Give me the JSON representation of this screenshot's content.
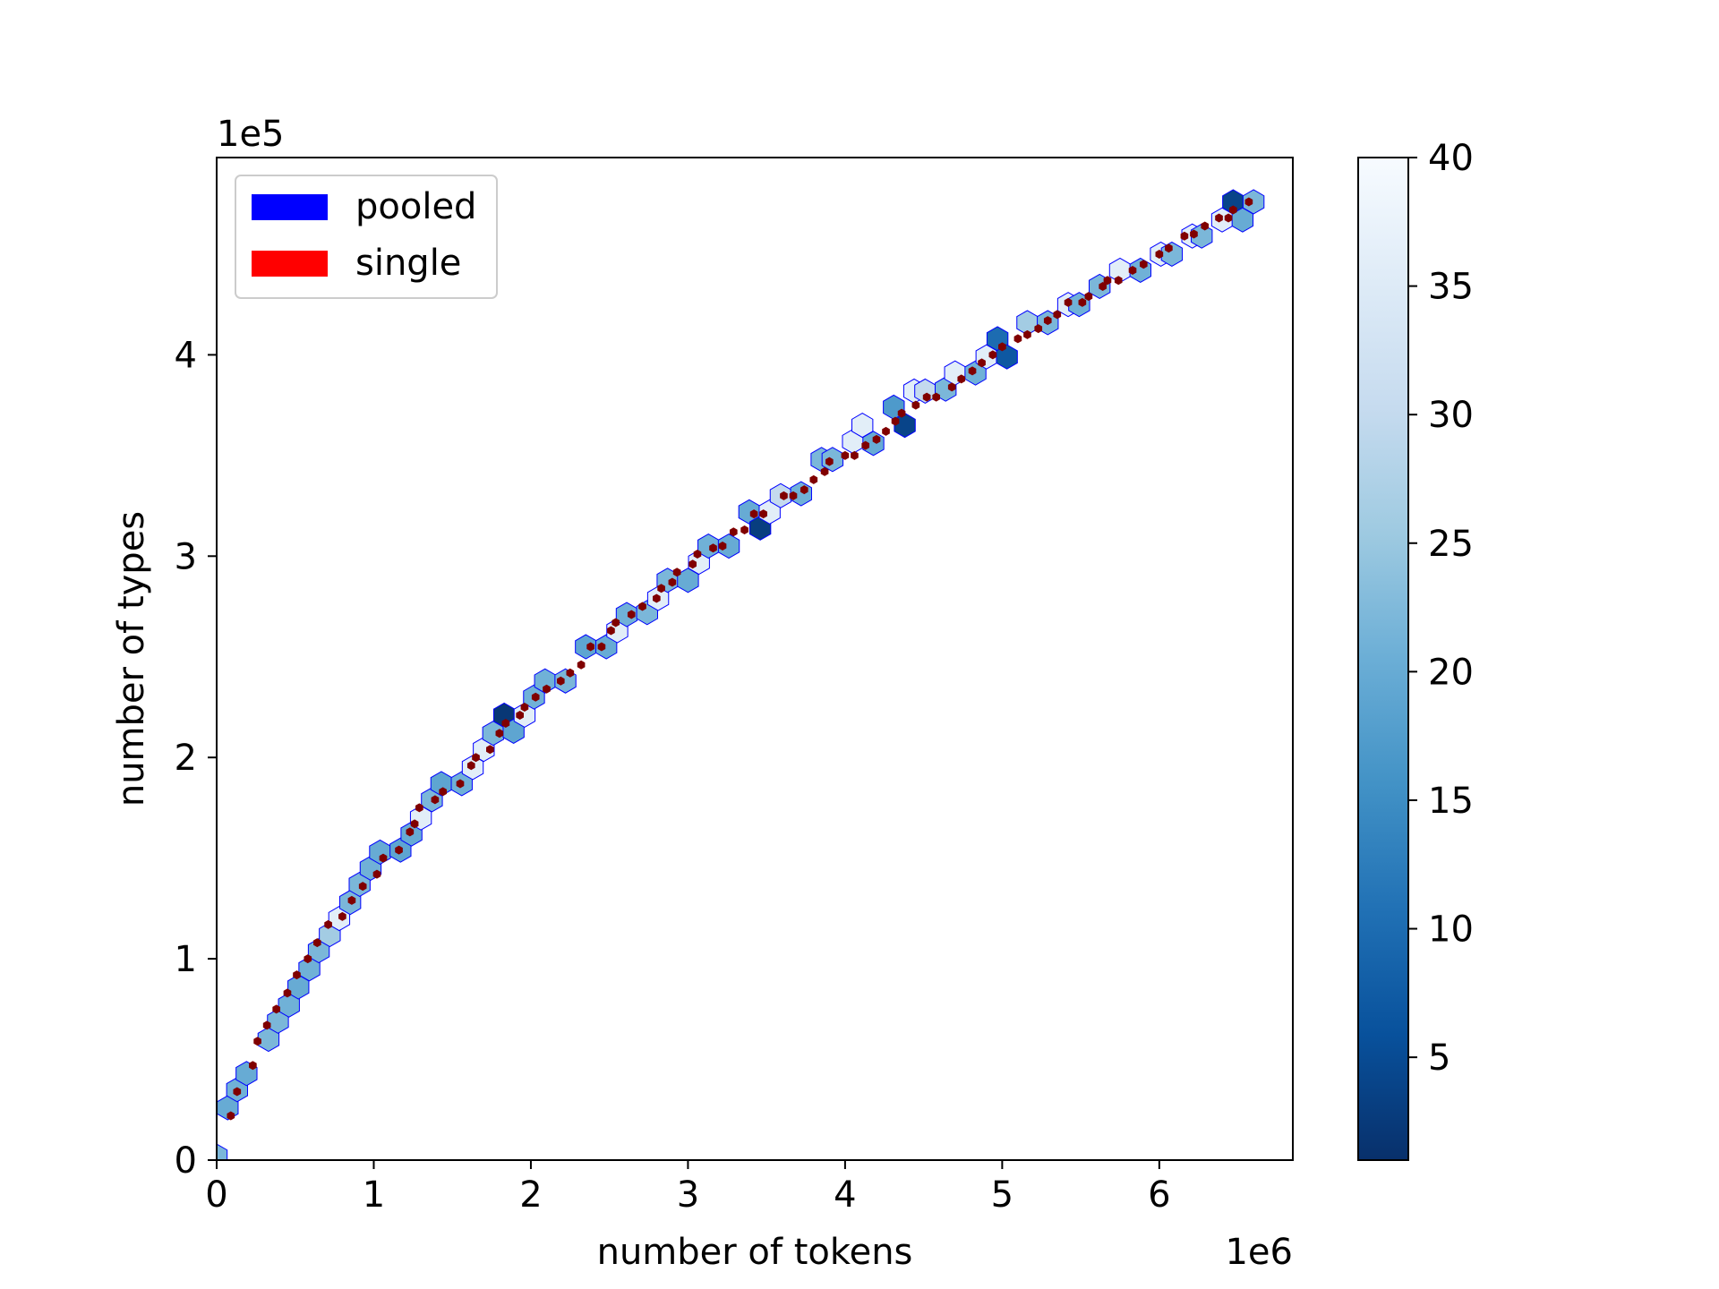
{
  "chart_data": {
    "type": "hexbin",
    "xlabel": "number of tokens",
    "ylabel": "number of types",
    "x_offset_label": "1e6",
    "y_offset_label": "1e5",
    "x_multiplier": 1000000,
    "y_multiplier": 100000,
    "xlim": [
      0,
      6.85
    ],
    "ylim": [
      0,
      4.98
    ],
    "xticks": [
      0,
      1,
      2,
      3,
      4,
      5,
      6
    ],
    "xtick_labels": [
      "0",
      "1",
      "2",
      "3",
      "4",
      "5",
      "6"
    ],
    "yticks": [
      0,
      1,
      2,
      3,
      4
    ],
    "ytick_labels": [
      "0",
      "1",
      "2",
      "3",
      "4"
    ],
    "grid": false,
    "legend": {
      "position": "upper-left",
      "entries": [
        {
          "label": "pooled",
          "color": "#0000ff"
        },
        {
          "label": "single",
          "color": "#ff0000"
        }
      ]
    },
    "colorbar": {
      "colormap": "Blues_r",
      "min": 1,
      "max": 40,
      "ticks": [
        5,
        10,
        15,
        20,
        25,
        30,
        35,
        40
      ],
      "tick_labels": [
        "5",
        "10",
        "15",
        "20",
        "25",
        "30",
        "35",
        "40"
      ]
    },
    "series": [
      {
        "name": "pooled",
        "kind": "hexbin counts (x, y, count)",
        "edge_color": "#0000ff",
        "points": [
          [
            0.0,
            0.02,
            22
          ],
          [
            0.07,
            0.26,
            20
          ],
          [
            0.13,
            0.35,
            21
          ],
          [
            0.19,
            0.43,
            20
          ],
          [
            0.33,
            0.6,
            22
          ],
          [
            0.39,
            0.69,
            22
          ],
          [
            0.46,
            0.77,
            21
          ],
          [
            0.52,
            0.86,
            20
          ],
          [
            0.59,
            0.95,
            21
          ],
          [
            0.65,
            1.04,
            22
          ],
          [
            0.72,
            1.12,
            26
          ],
          [
            0.78,
            1.2,
            36
          ],
          [
            0.85,
            1.28,
            22
          ],
          [
            0.91,
            1.37,
            22
          ],
          [
            0.98,
            1.45,
            21
          ],
          [
            1.04,
            1.53,
            20
          ],
          [
            1.17,
            1.54,
            19
          ],
          [
            1.24,
            1.62,
            20
          ],
          [
            1.3,
            1.7,
            36
          ],
          [
            1.37,
            1.79,
            22
          ],
          [
            1.43,
            1.87,
            19
          ],
          [
            1.56,
            1.87,
            21
          ],
          [
            1.63,
            1.95,
            36
          ],
          [
            1.7,
            2.04,
            36
          ],
          [
            1.76,
            2.12,
            22
          ],
          [
            1.83,
            2.21,
            2
          ],
          [
            1.89,
            2.13,
            19
          ],
          [
            1.96,
            2.21,
            36
          ],
          [
            2.02,
            2.3,
            21
          ],
          [
            2.09,
            2.38,
            21
          ],
          [
            2.22,
            2.38,
            22
          ],
          [
            2.35,
            2.55,
            19
          ],
          [
            2.48,
            2.55,
            20
          ],
          [
            2.55,
            2.63,
            36
          ],
          [
            2.61,
            2.71,
            21
          ],
          [
            2.74,
            2.72,
            22
          ],
          [
            2.81,
            2.79,
            36
          ],
          [
            2.87,
            2.88,
            22
          ],
          [
            3.0,
            2.88,
            20
          ],
          [
            3.07,
            2.97,
            36
          ],
          [
            3.13,
            3.05,
            21
          ],
          [
            3.26,
            3.05,
            20
          ],
          [
            3.39,
            3.22,
            20
          ],
          [
            3.46,
            3.14,
            3
          ],
          [
            3.52,
            3.22,
            36
          ],
          [
            3.59,
            3.3,
            30
          ],
          [
            3.72,
            3.31,
            21
          ],
          [
            3.85,
            3.48,
            22
          ],
          [
            3.92,
            3.48,
            22
          ],
          [
            4.05,
            3.57,
            36
          ],
          [
            4.11,
            3.65,
            36
          ],
          [
            4.18,
            3.56,
            20
          ],
          [
            4.31,
            3.74,
            17
          ],
          [
            4.38,
            3.65,
            4
          ],
          [
            4.44,
            3.82,
            36
          ],
          [
            4.51,
            3.82,
            30
          ],
          [
            4.64,
            3.83,
            22
          ],
          [
            4.7,
            3.91,
            36
          ],
          [
            4.83,
            3.91,
            21
          ],
          [
            4.9,
            3.99,
            36
          ],
          [
            4.97,
            4.08,
            10
          ],
          [
            5.03,
            3.99,
            7
          ],
          [
            5.16,
            4.16,
            26
          ],
          [
            5.29,
            4.16,
            22
          ],
          [
            5.42,
            4.25,
            36
          ],
          [
            5.49,
            4.25,
            21
          ],
          [
            5.62,
            4.34,
            22
          ],
          [
            5.75,
            4.42,
            36
          ],
          [
            5.88,
            4.42,
            21
          ],
          [
            6.01,
            4.5,
            36
          ],
          [
            6.08,
            4.5,
            22
          ],
          [
            6.21,
            4.59,
            36
          ],
          [
            6.27,
            4.59,
            22
          ],
          [
            6.4,
            4.67,
            36
          ],
          [
            6.47,
            4.76,
            4
          ],
          [
            6.53,
            4.67,
            20
          ],
          [
            6.6,
            4.76,
            22
          ]
        ]
      },
      {
        "name": "single",
        "kind": "hexbin counts (x, y)",
        "color": "#800000",
        "points": [
          [
            0.09,
            0.22
          ],
          [
            0.13,
            0.34
          ],
          [
            0.23,
            0.47
          ],
          [
            0.26,
            0.59
          ],
          [
            0.32,
            0.67
          ],
          [
            0.38,
            0.75
          ],
          [
            0.45,
            0.83
          ],
          [
            0.51,
            0.92
          ],
          [
            0.58,
            1.0
          ],
          [
            0.64,
            1.08
          ],
          [
            0.71,
            1.17
          ],
          [
            0.8,
            1.21
          ],
          [
            0.86,
            1.29
          ],
          [
            0.93,
            1.36
          ],
          [
            1.02,
            1.42
          ],
          [
            1.06,
            1.5
          ],
          [
            1.16,
            1.54
          ],
          [
            1.23,
            1.63
          ],
          [
            1.26,
            1.67
          ],
          [
            1.29,
            1.75
          ],
          [
            1.39,
            1.79
          ],
          [
            1.44,
            1.83
          ],
          [
            1.55,
            1.87
          ],
          [
            1.62,
            1.96
          ],
          [
            1.65,
            2.0
          ],
          [
            1.74,
            2.04
          ],
          [
            1.8,
            2.12
          ],
          [
            1.84,
            2.17
          ],
          [
            1.93,
            2.21
          ],
          [
            1.96,
            2.25
          ],
          [
            2.03,
            2.3
          ],
          [
            2.1,
            2.34
          ],
          [
            2.19,
            2.38
          ],
          [
            2.25,
            2.42
          ],
          [
            2.32,
            2.46
          ],
          [
            2.38,
            2.55
          ],
          [
            2.45,
            2.55
          ],
          [
            2.51,
            2.63
          ],
          [
            2.54,
            2.67
          ],
          [
            2.64,
            2.71
          ],
          [
            2.71,
            2.75
          ],
          [
            2.8,
            2.79
          ],
          [
            2.83,
            2.84
          ],
          [
            2.9,
            2.87
          ],
          [
            2.93,
            2.92
          ],
          [
            3.03,
            2.96
          ],
          [
            3.06,
            3.01
          ],
          [
            3.16,
            3.04
          ],
          [
            3.22,
            3.05
          ],
          [
            3.29,
            3.12
          ],
          [
            3.36,
            3.13
          ],
          [
            3.42,
            3.21
          ],
          [
            3.48,
            3.21
          ],
          [
            3.61,
            3.3
          ],
          [
            3.67,
            3.3
          ],
          [
            3.74,
            3.33
          ],
          [
            3.8,
            3.38
          ],
          [
            3.87,
            3.42
          ],
          [
            3.9,
            3.47
          ],
          [
            4.0,
            3.5
          ],
          [
            4.06,
            3.5
          ],
          [
            4.13,
            3.55
          ],
          [
            4.2,
            3.58
          ],
          [
            4.26,
            3.62
          ],
          [
            4.32,
            3.67
          ],
          [
            4.36,
            3.71
          ],
          [
            4.45,
            3.75
          ],
          [
            4.52,
            3.79
          ],
          [
            4.58,
            3.79
          ],
          [
            4.68,
            3.84
          ],
          [
            4.74,
            3.88
          ],
          [
            4.81,
            3.92
          ],
          [
            4.87,
            3.96
          ],
          [
            4.94,
            4.0
          ],
          [
            5.0,
            4.04
          ],
          [
            5.1,
            4.08
          ],
          [
            5.16,
            4.1
          ],
          [
            5.23,
            4.13
          ],
          [
            5.29,
            4.17
          ],
          [
            5.35,
            4.2
          ],
          [
            5.42,
            4.26
          ],
          [
            5.51,
            4.26
          ],
          [
            5.55,
            4.29
          ],
          [
            5.64,
            4.34
          ],
          [
            5.67,
            4.37
          ],
          [
            5.74,
            4.37
          ],
          [
            5.83,
            4.42
          ],
          [
            5.9,
            4.45
          ],
          [
            6.0,
            4.5
          ],
          [
            6.06,
            4.53
          ],
          [
            6.16,
            4.59
          ],
          [
            6.22,
            4.6
          ],
          [
            6.29,
            4.64
          ],
          [
            6.38,
            4.68
          ],
          [
            6.44,
            4.68
          ],
          [
            6.47,
            4.72
          ],
          [
            6.57,
            4.76
          ]
        ]
      }
    ]
  }
}
